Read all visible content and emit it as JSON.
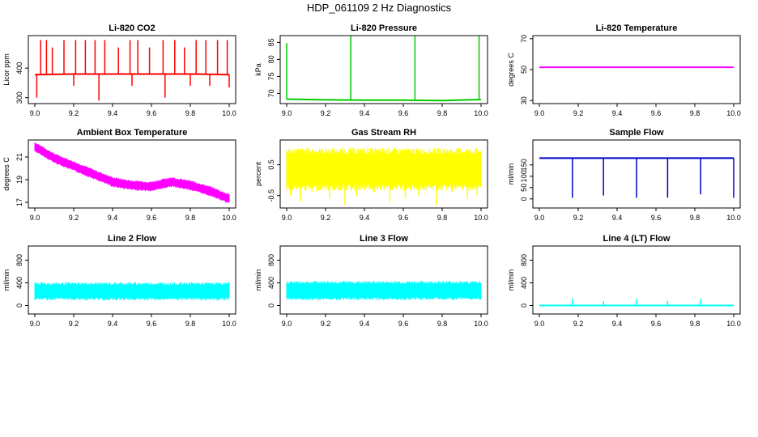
{
  "page_title": "HDP_061109  2 Hz Diagnostics",
  "chart_data": [
    {
      "type": "line",
      "title": "Li-820 CO2",
      "xlabel": "",
      "ylabel": "Licor ppm",
      "color": "#ff0000",
      "xlim": [
        9.0,
        10.0
      ],
      "ylim": [
        280,
        510
      ],
      "xticks": [
        "9.0",
        "9.2",
        "9.4",
        "9.6",
        "9.8",
        "10.0"
      ],
      "yticks": [
        300,
        400
      ],
      "ytick_labels": [
        "300",
        "400"
      ],
      "grid": false,
      "series": [
        {
          "x": [
            9.0,
            9.2,
            9.4,
            9.6,
            9.8,
            10.0
          ],
          "values": [
            378,
            380,
            380,
            380,
            380,
            378
          ]
        }
      ],
      "spikes_up": {
        "x": [
          9.03,
          9.06,
          9.09,
          9.15,
          9.21,
          9.26,
          9.31,
          9.36,
          9.43,
          9.49,
          9.53,
          9.59,
          9.66,
          9.72,
          9.77,
          9.83,
          9.88,
          9.94,
          9.99
        ],
        "peak": [
          495,
          495,
          470,
          495,
          495,
          495,
          495,
          495,
          470,
          495,
          495,
          470,
          495,
          495,
          470,
          495,
          495,
          495,
          495
        ]
      },
      "spikes_down": {
        "x": [
          9.01,
          9.2,
          9.33,
          9.5,
          9.67,
          9.8,
          9.9,
          10.0
        ],
        "peak": [
          300,
          340,
          290,
          340,
          300,
          340,
          340,
          335
        ]
      }
    },
    {
      "type": "line",
      "title": "Li-820 Pressure",
      "xlabel": "",
      "ylabel": "kPa",
      "color": "#00cc00",
      "xlim": [
        9.0,
        10.0
      ],
      "ylim": [
        67,
        87
      ],
      "xticks": [
        "9.0",
        "9.2",
        "9.4",
        "9.6",
        "9.8",
        "10.0"
      ],
      "yticks": [
        70,
        75,
        80,
        85
      ],
      "ytick_labels": [
        "70",
        "75",
        "80",
        "85"
      ],
      "grid": false,
      "series": [
        {
          "x": [
            9.0,
            9.2,
            9.4,
            9.6,
            9.8,
            10.0
          ],
          "values": [
            68.3,
            68.1,
            68.0,
            68.0,
            67.9,
            68.2
          ]
        }
      ],
      "spikes_up": {
        "x": [
          9.0,
          9.33,
          9.66,
          9.99
        ],
        "peak": [
          84.8,
          86.9,
          86.9,
          86.9
        ]
      },
      "spikes_down": {
        "x": [],
        "peak": []
      }
    },
    {
      "type": "line",
      "title": "Li-820 Temperature",
      "xlabel": "",
      "ylabel": "degrees C",
      "color": "#ff00ff",
      "xlim": [
        9.0,
        10.0
      ],
      "ylim": [
        28,
        72
      ],
      "xticks": [
        "9.0",
        "9.2",
        "9.4",
        "9.6",
        "9.8",
        "10.0"
      ],
      "yticks": [
        30,
        50,
        70
      ],
      "ytick_labels": [
        "30",
        "50",
        "70"
      ],
      "grid": false,
      "series": [
        {
          "x": [
            9.0,
            10.0
          ],
          "values": [
            51.5,
            51.5
          ]
        }
      ],
      "spikes_up": {
        "x": [],
        "peak": []
      },
      "spikes_down": {
        "x": [],
        "peak": []
      }
    },
    {
      "type": "area",
      "title": "Ambient Box Temperature",
      "xlabel": "",
      "ylabel": "degrees C",
      "color": "#ff00ff",
      "xlim": [
        9.0,
        10.0
      ],
      "ylim": [
        16.5,
        22.5
      ],
      "xticks": [
        "9.0",
        "9.2",
        "9.4",
        "9.6",
        "9.8",
        "10.0"
      ],
      "yticks": [
        17,
        19,
        21
      ],
      "ytick_labels": [
        "17",
        "19",
        "21"
      ],
      "grid": false,
      "series": [
        {
          "x": [
            9.0,
            9.1,
            9.2,
            9.3,
            9.4,
            9.5,
            9.6,
            9.7,
            9.8,
            9.9,
            10.0
          ],
          "values": [
            21.9,
            20.9,
            20.2,
            19.5,
            18.8,
            18.5,
            18.4,
            18.8,
            18.5,
            18.0,
            17.3
          ],
          "band": 0.45
        }
      ],
      "spikes_up": {
        "x": [],
        "peak": []
      },
      "spikes_down": {
        "x": [],
        "peak": []
      }
    },
    {
      "type": "area",
      "title": "Gas Stream RH",
      "xlabel": "",
      "ylabel": "percent",
      "color": "#ffff00",
      "xlim": [
        9.0,
        10.0
      ],
      "ylim": [
        -0.9,
        1.3
      ],
      "xticks": [
        "9.0",
        "9.2",
        "9.4",
        "9.6",
        "9.8",
        "10.0"
      ],
      "yticks": [
        -0.5,
        0.5
      ],
      "ytick_labels": [
        "-0.5",
        "0.5"
      ],
      "grid": false,
      "series": [
        {
          "x": [
            9.0,
            10.0
          ],
          "values": [
            0.35,
            0.35
          ],
          "band": 0.7
        }
      ],
      "spikes_up": {
        "x": [],
        "peak": []
      },
      "spikes_down": {
        "x": [
          9.02,
          9.07,
          9.13,
          9.22,
          9.3,
          9.36,
          9.45,
          9.53,
          9.61,
          9.68,
          9.77,
          9.85,
          9.93,
          9.98
        ],
        "peak": [
          -0.5,
          -0.7,
          -0.4,
          -0.6,
          -0.8,
          -0.5,
          -0.4,
          -0.7,
          -0.6,
          -0.5,
          -0.8,
          -0.4,
          -0.6,
          -0.5
        ]
      }
    },
    {
      "type": "line",
      "title": "Sample Flow",
      "xlabel": "",
      "ylabel": "ml/min",
      "color": "#0000cc",
      "xlim": [
        9.0,
        10.0
      ],
      "ylim": [
        -40,
        260
      ],
      "xticks": [
        "9.0",
        "9.2",
        "9.4",
        "9.6",
        "9.8",
        "10.0"
      ],
      "yticks": [
        0,
        50,
        100,
        150
      ],
      "ytick_labels": [
        "0",
        "50",
        "100",
        "150"
      ],
      "grid": false,
      "series": [
        {
          "x": [
            9.0,
            10.0
          ],
          "values": [
            180,
            180
          ]
        }
      ],
      "spikes_up": {
        "x": [],
        "peak": []
      },
      "spikes_down": {
        "x": [
          9.17,
          9.33,
          9.5,
          9.66,
          9.83,
          10.0
        ],
        "peak": [
          5,
          15,
          5,
          5,
          20,
          5
        ]
      }
    },
    {
      "type": "area",
      "title": "Line 2 Flow",
      "xlabel": "",
      "ylabel": "ml/min",
      "color": "#00ffff",
      "xlim": [
        9.0,
        10.0
      ],
      "ylim": [
        -150,
        1050
      ],
      "xticks": [
        "9.0",
        "9.2",
        "9.4",
        "9.6",
        "9.8",
        "10.0"
      ],
      "yticks": [
        0,
        400,
        800
      ],
      "ytick_labels": [
        "0",
        "400",
        "800"
      ],
      "grid": false,
      "series": [
        {
          "x": [
            9.0,
            10.0
          ],
          "values": [
            250,
            250
          ],
          "band": 160
        }
      ],
      "spikes_up": {
        "x": [],
        "peak": []
      },
      "spikes_down": {
        "x": [],
        "peak": []
      }
    },
    {
      "type": "area",
      "title": "Line 3 Flow",
      "xlabel": "",
      "ylabel": "ml/min",
      "color": "#00ffff",
      "xlim": [
        9.0,
        10.0
      ],
      "ylim": [
        -150,
        1050
      ],
      "xticks": [
        "9.0",
        "9.2",
        "9.4",
        "9.6",
        "9.8",
        "10.0"
      ],
      "yticks": [
        0,
        400,
        800
      ],
      "ytick_labels": [
        "0",
        "400",
        "800"
      ],
      "grid": false,
      "series": [
        {
          "x": [
            9.0,
            10.0
          ],
          "values": [
            265,
            265
          ],
          "band": 170
        }
      ],
      "spikes_up": {
        "x": [],
        "peak": []
      },
      "spikes_down": {
        "x": [],
        "peak": []
      }
    },
    {
      "type": "line",
      "title": "Line 4 (LT) Flow",
      "xlabel": "",
      "ylabel": "ml/min",
      "color": "#00ffff",
      "xlim": [
        9.0,
        10.0
      ],
      "ylim": [
        -150,
        1050
      ],
      "xticks": [
        "9.0",
        "9.2",
        "9.4",
        "9.6",
        "9.8",
        "10.0"
      ],
      "yticks": [
        0,
        400,
        800
      ],
      "ytick_labels": [
        "0",
        "400",
        "800"
      ],
      "grid": false,
      "series": [
        {
          "x": [
            9.0,
            10.0
          ],
          "values": [
            0,
            0
          ]
        }
      ],
      "spikes_up": {
        "x": [
          9.17,
          9.33,
          9.5,
          9.66,
          9.83
        ],
        "peak": [
          120,
          80,
          120,
          80,
          120
        ]
      },
      "spikes_down": {
        "x": [],
        "peak": []
      }
    }
  ]
}
